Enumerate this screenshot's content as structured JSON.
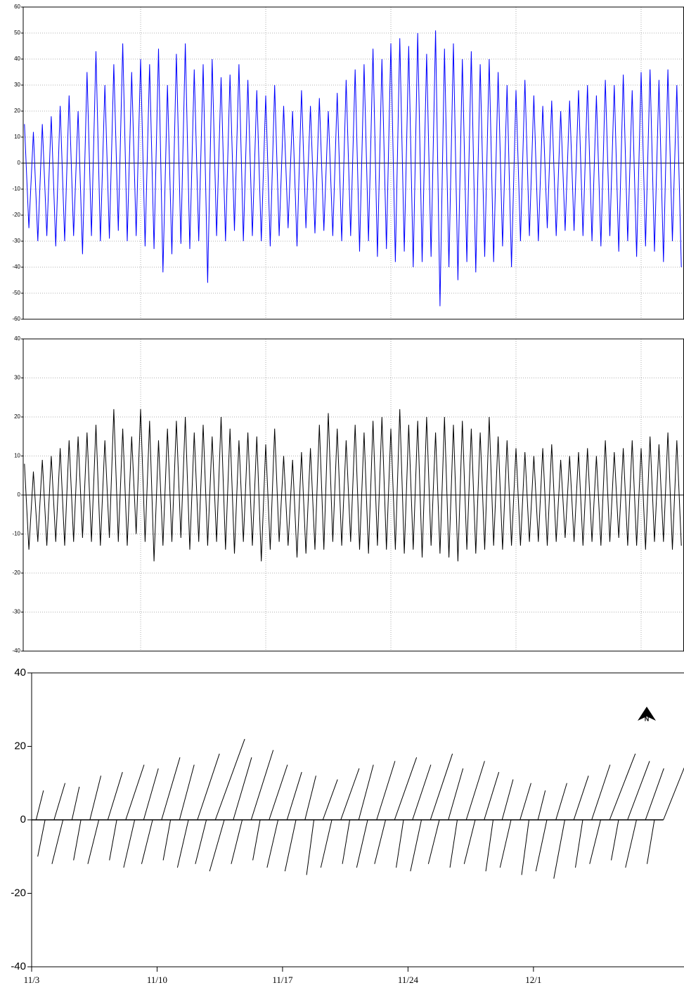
{
  "chart_data": [
    {
      "type": "line",
      "color": "#0000ff",
      "grid": true,
      "xlim": [
        0.43,
        37.4
      ],
      "xticks": [
        7,
        14,
        21,
        28,
        35
      ],
      "ylim": [
        -60,
        60
      ],
      "yticks": [
        -60,
        -50,
        -40,
        -30,
        -20,
        -10,
        0,
        10,
        20,
        30,
        40,
        50,
        60
      ],
      "x": [
        0.5,
        0.75,
        1,
        1.25,
        1.5,
        1.75,
        2,
        2.25,
        2.5,
        2.75,
        3,
        3.25,
        3.5,
        3.75,
        4,
        4.25,
        4.5,
        4.75,
        5,
        5.25,
        5.5,
        5.75,
        6,
        6.25,
        6.5,
        6.75,
        7,
        7.25,
        7.5,
        7.75,
        8,
        8.25,
        8.5,
        8.75,
        9,
        9.25,
        9.5,
        9.75,
        10,
        10.25,
        10.5,
        10.75,
        11,
        11.25,
        11.5,
        11.75,
        12,
        12.25,
        12.5,
        12.75,
        13,
        13.25,
        13.5,
        13.75,
        14,
        14.25,
        14.5,
        14.75,
        15,
        15.25,
        15.5,
        15.75,
        16,
        16.25,
        16.5,
        16.75,
        17,
        17.25,
        17.5,
        17.75,
        18,
        18.25,
        18.5,
        18.75,
        19,
        19.25,
        19.5,
        19.75,
        20,
        20.25,
        20.5,
        20.75,
        21,
        21.25,
        21.5,
        21.75,
        22,
        22.25,
        22.5,
        22.75,
        23,
        23.25,
        23.5,
        23.75,
        24,
        24.25,
        24.5,
        24.75,
        25,
        25.25,
        25.5,
        25.75,
        26,
        26.25,
        26.5,
        26.75,
        27,
        27.25,
        27.5,
        27.75,
        28,
        28.25,
        28.5,
        28.75,
        29,
        29.25,
        29.5,
        29.75,
        30,
        30.25,
        30.5,
        30.75,
        31,
        31.25,
        31.5,
        31.75,
        32,
        32.25,
        32.5,
        32.75,
        33,
        33.25,
        33.5,
        33.75,
        34,
        34.25,
        34.5,
        34.75,
        35,
        35.25,
        35.5,
        35.75,
        36,
        36.25,
        36.5,
        36.75,
        37,
        37.25
      ],
      "values": [
        15,
        -25,
        12,
        -30,
        15,
        -28,
        18,
        -32,
        22,
        -30,
        26,
        -28,
        20,
        -35,
        35,
        -28,
        43,
        -30,
        30,
        -29,
        38,
        -26,
        46,
        -30,
        35,
        -28,
        40,
        -32,
        38,
        -33,
        44,
        -42,
        30,
        -35,
        42,
        -31,
        46,
        -33,
        36,
        -30,
        38,
        -46,
        40,
        -28,
        33,
        -30,
        34,
        -26,
        38,
        -30,
        32,
        -28,
        28,
        -30,
        26,
        -32,
        30,
        -28,
        22,
        -25,
        20,
        -32,
        28,
        -25,
        22,
        -27,
        25,
        -26,
        20,
        -28,
        27,
        -30,
        32,
        -28,
        36,
        -34,
        38,
        -30,
        44,
        -36,
        40,
        -33,
        46,
        -38,
        48,
        -34,
        45,
        -40,
        50,
        -38,
        42,
        -36,
        51,
        -55,
        44,
        -40,
        46,
        -45,
        40,
        -38,
        43,
        -42,
        38,
        -36,
        40,
        -38,
        35,
        -32,
        30,
        -40,
        28,
        -30,
        32,
        -28,
        26,
        -30,
        22,
        -25,
        24,
        -28,
        20,
        -26,
        24,
        -26,
        28,
        -28,
        30,
        -30,
        26,
        -32,
        32,
        -28,
        30,
        -34,
        34,
        -30,
        28,
        -36,
        35,
        -32,
        36,
        -34,
        32,
        -38,
        36,
        -30,
        30,
        -40
      ]
    },
    {
      "type": "line",
      "color": "#000000",
      "grid": true,
      "xlim": [
        0.43,
        37.4
      ],
      "xticks": [
        7,
        14,
        21,
        28,
        35
      ],
      "ylim": [
        -40,
        40
      ],
      "yticks": [
        -40,
        -30,
        -20,
        -10,
        0,
        10,
        20,
        30,
        40
      ],
      "x": [
        0.5,
        0.75,
        1,
        1.25,
        1.5,
        1.75,
        2,
        2.25,
        2.5,
        2.75,
        3,
        3.25,
        3.5,
        3.75,
        4,
        4.25,
        4.5,
        4.75,
        5,
        5.25,
        5.5,
        5.75,
        6,
        6.25,
        6.5,
        6.75,
        7,
        7.25,
        7.5,
        7.75,
        8,
        8.25,
        8.5,
        8.75,
        9,
        9.25,
        9.5,
        9.75,
        10,
        10.25,
        10.5,
        10.75,
        11,
        11.25,
        11.5,
        11.75,
        12,
        12.25,
        12.5,
        12.75,
        13,
        13.25,
        13.5,
        13.75,
        14,
        14.25,
        14.5,
        14.75,
        15,
        15.25,
        15.5,
        15.75,
        16,
        16.25,
        16.5,
        16.75,
        17,
        17.25,
        17.5,
        17.75,
        18,
        18.25,
        18.5,
        18.75,
        19,
        19.25,
        19.5,
        19.75,
        20,
        20.25,
        20.5,
        20.75,
        21,
        21.25,
        21.5,
        21.75,
        22,
        22.25,
        22.5,
        22.75,
        23,
        23.25,
        23.5,
        23.75,
        24,
        24.25,
        24.5,
        24.75,
        25,
        25.25,
        25.5,
        25.75,
        26,
        26.25,
        26.5,
        26.75,
        27,
        27.25,
        27.5,
        27.75,
        28,
        28.25,
        28.5,
        28.75,
        29,
        29.25,
        29.5,
        29.75,
        30,
        30.25,
        30.5,
        30.75,
        31,
        31.25,
        31.5,
        31.75,
        32,
        32.25,
        32.5,
        32.75,
        33,
        33.25,
        33.5,
        33.75,
        34,
        34.25,
        34.5,
        34.75,
        35,
        35.25,
        35.5,
        35.75,
        36,
        36.25,
        36.5,
        36.75,
        37,
        37.25
      ],
      "values": [
        8,
        -14,
        6,
        -12,
        9,
        -13,
        10,
        -12,
        12,
        -13,
        14,
        -12,
        15,
        -11,
        16,
        -12,
        18,
        -13,
        14,
        -11,
        22,
        -12,
        17,
        -13,
        15,
        -10,
        22,
        -12,
        19,
        -17,
        14,
        -13,
        17,
        -12,
        19,
        -11,
        20,
        -14,
        16,
        -12,
        18,
        -13,
        15,
        -12,
        20,
        -14,
        17,
        -15,
        14,
        -12,
        16,
        -13,
        15,
        -17,
        13,
        -14,
        17,
        -12,
        10,
        -13,
        9,
        -16,
        11,
        -15,
        12,
        -14,
        18,
        -14,
        21,
        -12,
        17,
        -13,
        14,
        -12,
        18,
        -14,
        16,
        -15,
        19,
        -13,
        20,
        -14,
        17,
        -14,
        22,
        -15,
        18,
        -14,
        19,
        -16,
        20,
        -13,
        16,
        -15,
        20,
        -16,
        18,
        -17,
        19,
        -14,
        17,
        -15,
        16,
        -14,
        20,
        -13,
        15,
        -14,
        14,
        -13,
        12,
        -13,
        11,
        -12,
        10,
        -12,
        12,
        -13,
        13,
        -12,
        9,
        -11,
        10,
        -12,
        11,
        -13,
        12,
        -12,
        10,
        -13,
        14,
        -12,
        11,
        -11,
        12,
        -13,
        14,
        -13,
        12,
        -14,
        15,
        -12,
        13,
        -12,
        16,
        -14,
        14,
        -13
      ]
    },
    {
      "type": "stick",
      "color": "#000000",
      "north_label": "N",
      "xlim": [
        0,
        36.4
      ],
      "xticks": [
        {
          "value": 0,
          "label": "11/3"
        },
        {
          "value": 7,
          "label": "11/10"
        },
        {
          "value": 14,
          "label": "11/17"
        },
        {
          "value": 21,
          "label": "11/24"
        },
        {
          "value": 28,
          "label": "12/1"
        }
      ],
      "ylim": [
        -40,
        40
      ],
      "yticks": [
        -40,
        -20,
        0,
        20,
        40
      ],
      "x": [
        0.25,
        0.75,
        1.25,
        1.75,
        2.25,
        2.75,
        3.25,
        3.75,
        4.25,
        4.75,
        5.25,
        5.75,
        6.25,
        6.75,
        7.25,
        7.75,
        8.25,
        8.75,
        9.25,
        9.75,
        10.25,
        10.75,
        11.25,
        11.75,
        12.25,
        12.75,
        13.25,
        13.75,
        14.25,
        14.75,
        15.25,
        15.75,
        16.25,
        16.75,
        17.25,
        17.75,
        18.25,
        18.75,
        19.25,
        19.75,
        20.25,
        20.75,
        21.25,
        21.75,
        22.25,
        22.75,
        23.25,
        23.75,
        24.25,
        24.75,
        25.25,
        25.75,
        26.25,
        26.75,
        27.25,
        27.75,
        28.25,
        28.75,
        29.25,
        29.75,
        30.25,
        30.75,
        31.25,
        31.75,
        32.25,
        32.75,
        33.25,
        33.75,
        34.25,
        34.75,
        35.25
      ],
      "u": [
        2,
        -2,
        3,
        -3,
        2,
        -2,
        3,
        -3,
        4,
        -2,
        5,
        -3,
        4,
        -3,
        5,
        -2,
        4,
        -3,
        6,
        -3,
        8,
        -4,
        5,
        -3,
        6,
        -2,
        5,
        -3,
        4,
        -3,
        3,
        -2,
        4,
        -3,
        5,
        -2,
        4,
        -3,
        5,
        -3,
        6,
        -2,
        5,
        -3,
        6,
        -3,
        4,
        -2,
        5,
        -3,
        4,
        -2,
        3,
        -3,
        3,
        -2,
        2,
        -3,
        3,
        -3,
        4,
        -2,
        5,
        -3,
        7,
        -2,
        6,
        -3,
        5,
        -2,
        6
      ],
      "v": [
        8,
        -10,
        10,
        -12,
        9,
        -11,
        12,
        -12,
        13,
        -11,
        15,
        -13,
        14,
        -12,
        17,
        -11,
        15,
        -13,
        18,
        -12,
        22,
        -14,
        17,
        -12,
        19,
        -11,
        15,
        -13,
        13,
        -14,
        12,
        -15,
        11,
        -13,
        14,
        -12,
        15,
        -13,
        16,
        -12,
        17,
        -13,
        15,
        -14,
        18,
        -12,
        14,
        -13,
        16,
        -12,
        13,
        -14,
        11,
        -13,
        10,
        -15,
        8,
        -14,
        10,
        -16,
        12,
        -13,
        15,
        -12,
        18,
        -11,
        16,
        -13,
        14,
        -12,
        15
      ]
    }
  ]
}
